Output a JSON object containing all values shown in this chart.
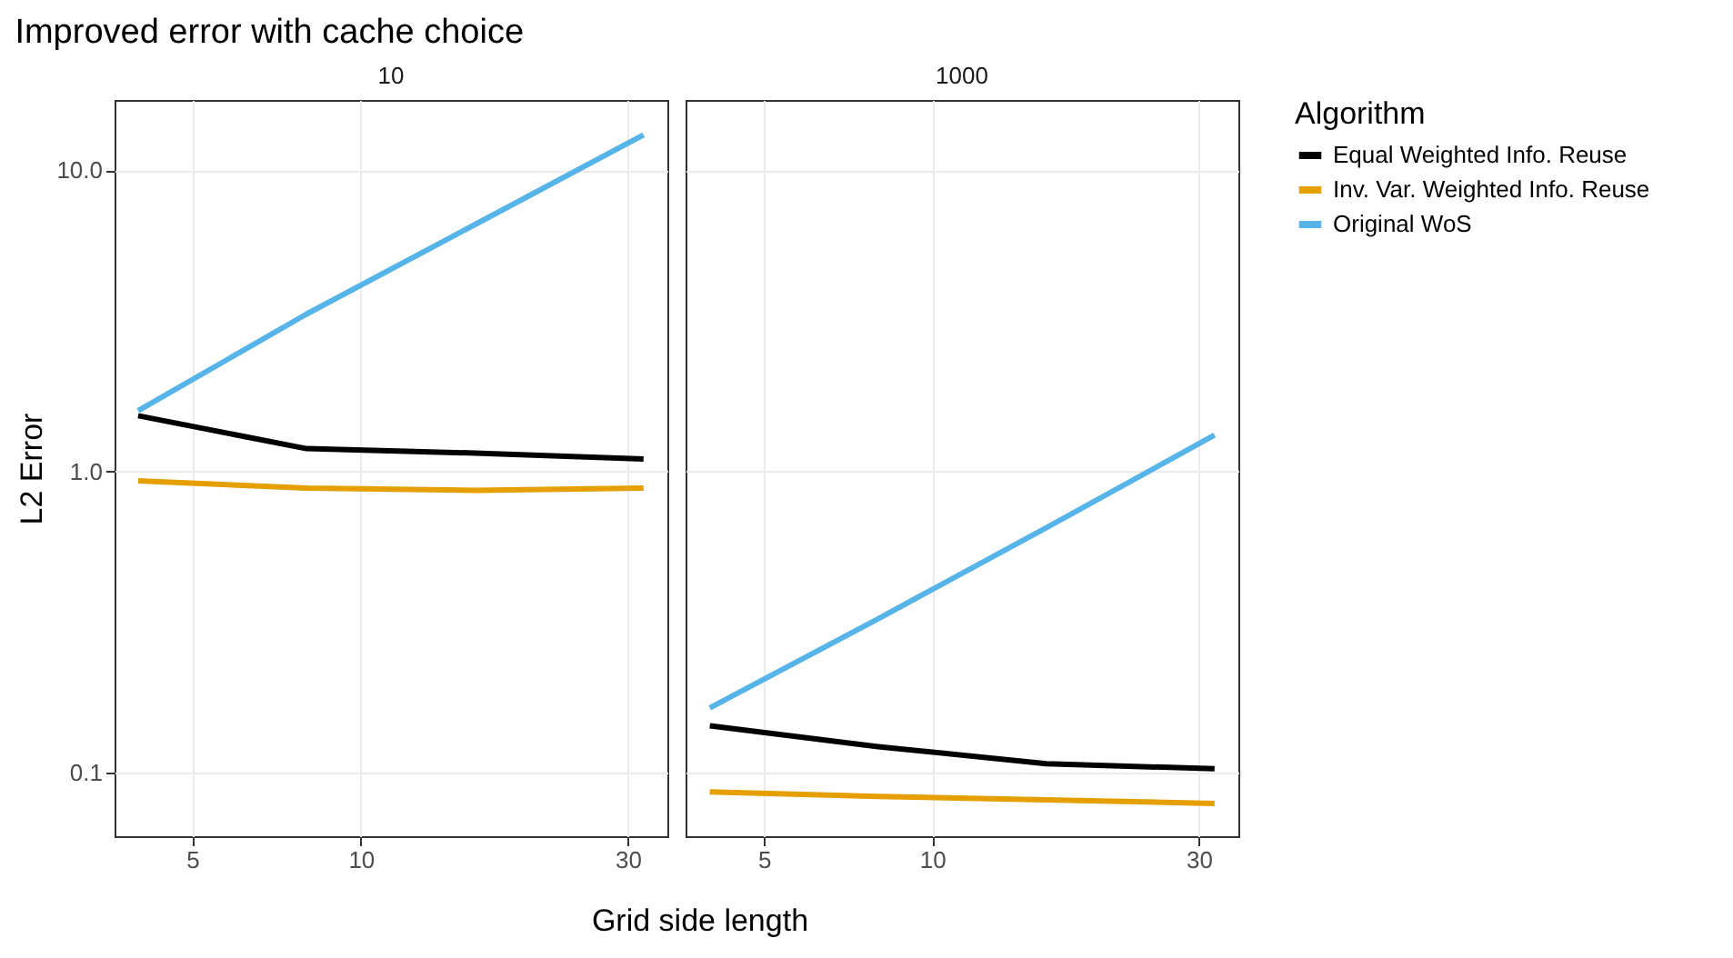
{
  "chart_data": [
    {
      "type": "line",
      "title": "Improved error with cache choice",
      "subtitle": "10",
      "xlabel": "Grid side length",
      "ylabel": "L2 Error",
      "legend_title": "Algorithm",
      "log": "xy",
      "grid": true,
      "legend": "right",
      "x": [
        4,
        8,
        16,
        32
      ],
      "xlim": [
        3.63,
        35.3
      ],
      "xticks": [
        5,
        10,
        30
      ],
      "ylim": [
        0.0615,
        17.1
      ],
      "yticks": [
        {
          "value": 0.1,
          "label": "0.1"
        },
        {
          "value": 1,
          "label": "1.0"
        },
        {
          "value": 10,
          "label": "10.0"
        }
      ],
      "series": [
        {
          "name": "Equal Weighted Info. Reuse",
          "color": "#000000",
          "values": [
            1.53,
            1.19,
            1.15,
            1.1
          ]
        },
        {
          "name": "Inv. Var. Weighted Info. Reuse",
          "color": "#e69f00",
          "values": [
            0.93,
            0.88,
            0.865,
            0.88
          ]
        },
        {
          "name": "Original WoS",
          "color": "#56b4e9",
          "values": [
            1.59,
            3.33,
            6.6,
            13.1
          ]
        }
      ]
    },
    {
      "type": "line",
      "subtitle": "1000",
      "log": "xy",
      "grid": true,
      "tick_labels": "x",
      "x": [
        4,
        8,
        16,
        32
      ],
      "xlim": [
        3.62,
        35.3
      ],
      "xticks": [
        5,
        10,
        30
      ],
      "ylim": [
        0.0615,
        17.1
      ],
      "yticks": [
        0.1,
        1,
        10
      ],
      "series": [
        {
          "color": "#000000",
          "values": [
            0.143,
            0.122,
            0.107,
            0.103
          ]
        },
        {
          "color": "#e69f00",
          "values": [
            0.0863,
            0.0833,
            0.0812,
            0.079
          ]
        },
        {
          "color": "#56b4e9",
          "values": [
            0.164,
            0.324,
            0.65,
            1.32
          ]
        }
      ]
    }
  ]
}
